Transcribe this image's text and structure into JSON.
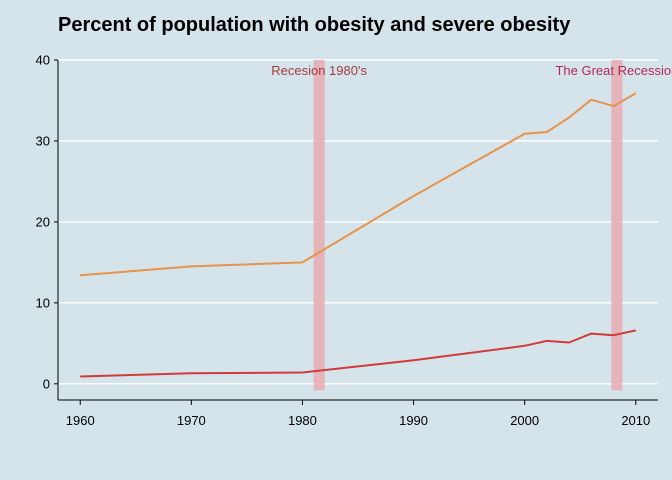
{
  "chart_data": {
    "type": "line",
    "title": "Percent of population with obesity and severe obesity",
    "xlabel": "",
    "ylabel": "",
    "xlim": [
      1958,
      2012
    ],
    "ylim": [
      -2,
      40
    ],
    "x_ticks": [
      1960,
      1970,
      1980,
      1990,
      2000,
      2010
    ],
    "y_ticks": [
      0,
      10,
      20,
      30,
      40
    ],
    "grid": "horizontal",
    "legend": "none",
    "series": [
      {
        "color": "#e8924a",
        "points": [
          [
            1960,
            13.4
          ],
          [
            1970,
            14.5
          ],
          [
            1980,
            15.0
          ],
          [
            1990,
            23.2
          ],
          [
            2000,
            30.9
          ],
          [
            2002,
            31.1
          ],
          [
            2004,
            32.9
          ],
          [
            2006,
            35.1
          ],
          [
            2008,
            34.3
          ],
          [
            2010,
            35.9
          ]
        ]
      },
      {
        "color": "#d23a3a",
        "points": [
          [
            1960,
            0.9
          ],
          [
            1970,
            1.3
          ],
          [
            1980,
            1.4
          ],
          [
            1990,
            2.9
          ],
          [
            2000,
            4.7
          ],
          [
            2002,
            5.3
          ],
          [
            2004,
            5.1
          ],
          [
            2006,
            6.2
          ],
          [
            2008,
            6.0
          ],
          [
            2010,
            6.6
          ]
        ]
      }
    ],
    "shaded_regions": [
      {
        "x0": 1981,
        "x1": 1982,
        "color": "#e8aab2",
        "label": "Recesion 1980's",
        "label_color": "#a43b3f"
      },
      {
        "x0": 2007.8,
        "x1": 2008.8,
        "color": "#e8aab2",
        "label": "The Great Recession",
        "label_color": "#b1285a"
      }
    ]
  }
}
